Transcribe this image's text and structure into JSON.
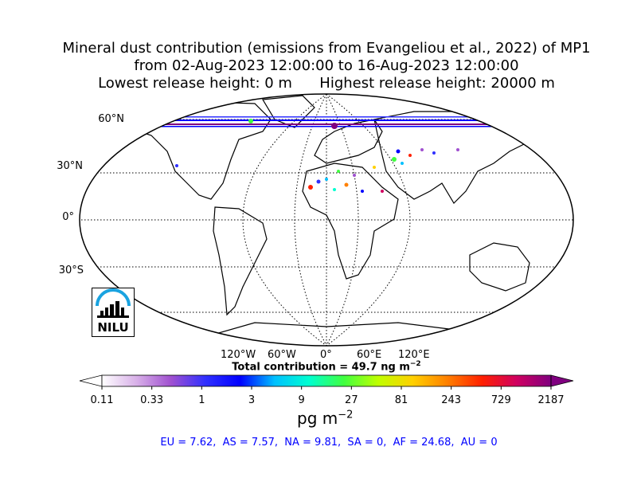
{
  "title": {
    "line1": "Mineral dust contribution (emissions from Evangeliou et al., 2022) of MP1",
    "line2": "from 02-Aug-2023 12:00:00 to 16-Aug-2023 12:00:00",
    "line3": "Lowest release height: 0 m      Highest release height: 20000 m"
  },
  "map": {
    "lat_labels": [
      "60°N",
      "30°N",
      "0°",
      "30°S"
    ],
    "lon_labels": [
      "120°W",
      "60°W",
      "0°",
      "60°E",
      "120°E"
    ],
    "total_contribution": "Total contribution = 49.7 ng m",
    "total_contribution_exp": "−2",
    "logo_text": "NILU",
    "ocean_color": "#ffffff",
    "land_outline": "#000000"
  },
  "colorbar": {
    "ticks": [
      "0.11",
      "0.33",
      "1",
      "3",
      "9",
      "27",
      "81",
      "243",
      "729",
      "2187"
    ],
    "unit": "pg m",
    "unit_exp": "−2",
    "colors": [
      "#ffffff",
      "#d8b0e8",
      "#a050d0",
      "#3030ff",
      "#0000ff",
      "#00c0ff",
      "#00ffd0",
      "#40ff40",
      "#c0ff00",
      "#ffd000",
      "#ff8000",
      "#ff2000",
      "#d00060",
      "#800080"
    ]
  },
  "regions": "EU = 7.62,  AS = 7.57,  NA = 9.81,  SA = 0,  AF = 24.68,  AU = 0"
}
